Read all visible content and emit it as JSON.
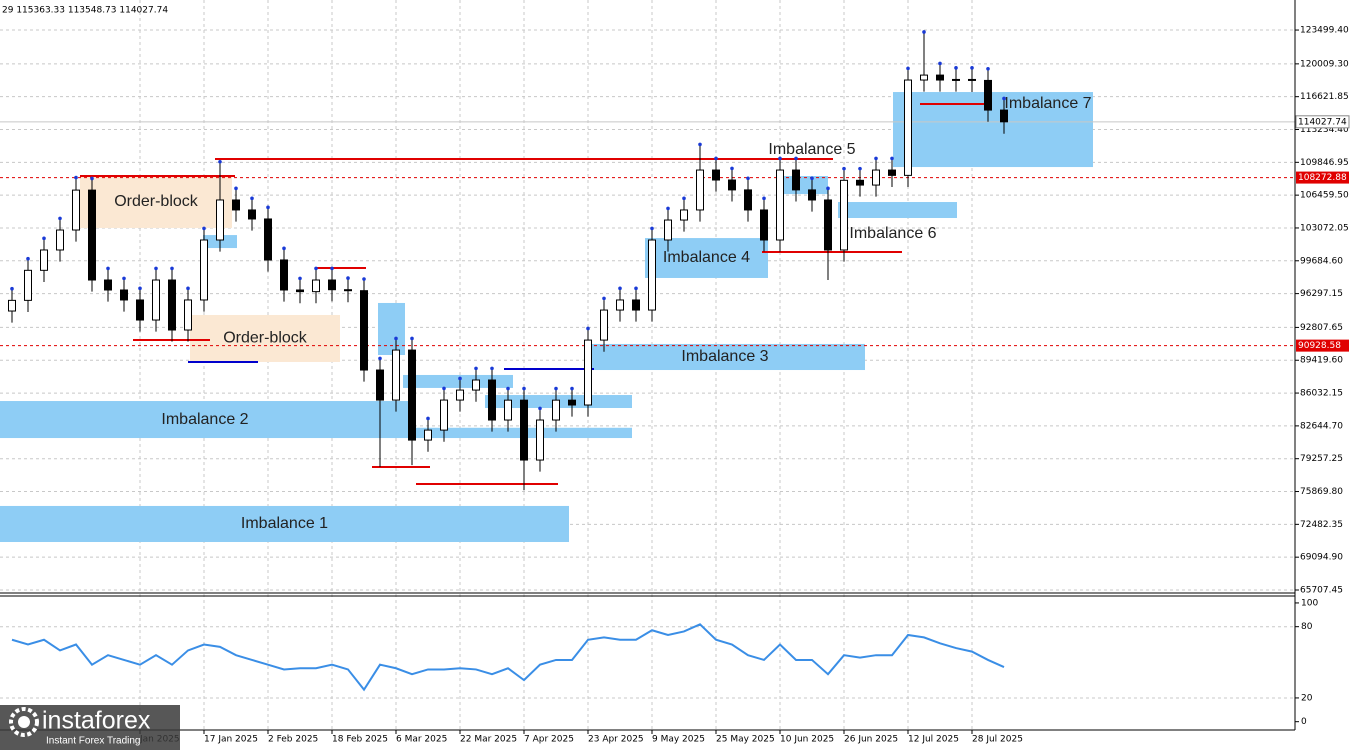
{
  "chart_data": [
    {
      "type": "candlestick",
      "header": "29 115363.33 113548.73 114027.74",
      "open": [
        94500,
        95600,
        98700,
        100800,
        102860,
        106980,
        97700,
        96670,
        95640,
        93570,
        97700,
        92540,
        95640,
        101830,
        105960,
        104930,
        104000,
        99770,
        96670,
        96500,
        97700,
        96700,
        96600,
        88410,
        85310,
        90470,
        81180,
        82210,
        85310,
        86340,
        87380,
        83250,
        85300,
        79120,
        83250,
        85300,
        84800,
        91500,
        94600,
        95640,
        94600,
        101830,
        103890,
        104930,
        109050,
        108020,
        107000,
        104930,
        101830,
        109050,
        107000,
        105960,
        100800,
        107990,
        107500,
        109050,
        108500,
        118340,
        118850,
        118340,
        118400,
        118300,
        115240
      ],
      "high": [
        96800,
        99900,
        102000,
        104060,
        108270,
        108180,
        98900,
        97870,
        96840,
        98900,
        98900,
        96840,
        103030,
        109900,
        107160,
        106130,
        105200,
        100970,
        97870,
        98900,
        98900,
        97900,
        97800,
        89610,
        91670,
        91670,
        83410,
        86510,
        87540,
        88580,
        88580,
        86500,
        86500,
        84450,
        86500,
        86500,
        92700,
        95800,
        96840,
        96840,
        103030,
        105090,
        106130,
        111700,
        110250,
        109220,
        108200,
        106130,
        110250,
        110250,
        108200,
        107160,
        109190,
        109190,
        110250,
        110250,
        119540,
        123300,
        120050,
        119600,
        119600,
        119500,
        116440
      ],
      "low": [
        93300,
        94400,
        97500,
        99600,
        101660,
        96500,
        95470,
        94440,
        92370,
        92370,
        91340,
        91340,
        94440,
        100630,
        103730,
        102800,
        98570,
        95470,
        95300,
        95300,
        95500,
        95400,
        87210,
        78400,
        84110,
        78600,
        79980,
        81010,
        84110,
        85140,
        82050,
        82050,
        76000,
        77920,
        82050,
        83600,
        83600,
        90300,
        93400,
        93400,
        93400,
        100630,
        102690,
        103730,
        106820,
        105800,
        103730,
        100630,
        100630,
        105800,
        104760,
        97700,
        99600,
        106300,
        106300,
        107300,
        107300,
        117140,
        117140,
        117140,
        117100,
        114040,
        112800
      ],
      "close": [
        95600,
        98700,
        100800,
        102860,
        106980,
        97700,
        96670,
        95640,
        93570,
        97700,
        92540,
        95640,
        101830,
        105960,
        104930,
        104000,
        99770,
        96670,
        96500,
        97700,
        96700,
        96600,
        88410,
        85310,
        90470,
        81180,
        82210,
        85310,
        86340,
        87380,
        83250,
        85300,
        79120,
        83250,
        85300,
        84800,
        91500,
        94600,
        95640,
        94600,
        101830,
        103890,
        104930,
        109050,
        108020,
        107000,
        104930,
        101830,
        109050,
        107000,
        105960,
        100800,
        107990,
        107500,
        109050,
        108500,
        118340,
        118850,
        118340,
        118400,
        118300,
        115240,
        114027.74
      ],
      "x_labels": [
        "Jan 2025",
        "17 Jan 2025",
        "2 Feb 2025",
        "18 Feb 2025",
        "6 Mar 2025",
        "22 Mar 2025",
        "7 Apr 2025",
        "23 Apr 2025",
        "9 May 2025",
        "25 May 2025",
        "10 Jun 2025",
        "26 Jun 2025",
        "12 Jul 2025",
        "28 Jul 2025"
      ],
      "ylim": [
        65500,
        126600
      ],
      "yticks": [
        {
          "value": 123499.4,
          "label": "123499.40"
        },
        {
          "value": 120009.3,
          "label": "120009.30"
        },
        {
          "value": 116621.85,
          "label": "116621.85"
        },
        {
          "value": 113234.4,
          "label": "113234.40"
        },
        {
          "value": 109846.95,
          "label": "109846.95"
        },
        {
          "value": 106459.5,
          "label": "106459.50"
        },
        {
          "value": 103072.05,
          "label": "103072.05"
        },
        {
          "value": 99684.6,
          "label": "99684.60"
        },
        {
          "value": 96297.15,
          "label": "96297.15"
        },
        {
          "value": 92807.65,
          "label": "92807.65"
        },
        {
          "value": 89419.6,
          "label": "89419.60"
        },
        {
          "value": 86032.15,
          "label": "86032.15"
        },
        {
          "value": 82644.7,
          "label": "82644.70"
        },
        {
          "value": 79257.25,
          "label": "79257.25"
        },
        {
          "value": 75869.8,
          "label": "75869.80"
        },
        {
          "value": 72482.35,
          "label": "72482.35"
        },
        {
          "value": 69094.9,
          "label": "69094.90"
        },
        {
          "value": 65707.45,
          "label": "65707.45"
        }
      ],
      "grid": true,
      "price_labels": [
        {
          "value": 114027.74,
          "color": "#c8c8c8",
          "dashed": false
        },
        {
          "value": 108272.88,
          "color": "#e00000",
          "dashed": true
        },
        {
          "value": 90928.58,
          "color": "#e00000",
          "dashed": true
        }
      ],
      "zones": [
        {
          "label": "Imbalance 1",
          "high": 74380,
          "low": 70660,
          "color": "#8ecdf5"
        },
        {
          "label": "Imbalance 2",
          "high": 85210,
          "low": 81390,
          "color": "#8ecdf5"
        },
        {
          "label": "Imbalance 3",
          "high": 91100,
          "low": 88410,
          "color": "#8ecdf5"
        },
        {
          "label": "Imbalance 4",
          "high": 102030,
          "low": 97910,
          "color": "#8ecdf5"
        },
        {
          "label": "Imbalance 5",
          "high": 108430,
          "low": 106570,
          "color": "#8ecdf5"
        },
        {
          "label": "Imbalance 6",
          "high": 105750,
          "low": 104100,
          "color": "#8ecdf5"
        },
        {
          "label": "Imbalance 7",
          "high": 117100,
          "low": 109360,
          "color": "#8ecdf5"
        },
        {
          "label": "Order-block",
          "high": 108430,
          "low": 103070,
          "color": "#fbe8d3"
        },
        {
          "label": "Order-block",
          "high": 94090,
          "low": 89240,
          "color": "#fbe8d3"
        },
        {
          "high": 82450,
          "low": 81390,
          "color": "#8ecdf5"
        },
        {
          "high": 87900,
          "low": 86560,
          "color": "#8ecdf5"
        },
        {
          "high": 85830,
          "low": 84490,
          "color": "#8ecdf5"
        },
        {
          "high": 102340,
          "low": 101000,
          "color": "#8ecdf5"
        },
        {
          "high": 95330,
          "low": 89960,
          "color": "#8ecdf5"
        }
      ],
      "levels": [
        {
          "value": 110190,
          "color": "#e00000"
        },
        {
          "value": 108430,
          "color": "#e00000"
        },
        {
          "value": 98940,
          "color": "#e00000"
        },
        {
          "value": 91510,
          "color": "#e00000"
        },
        {
          "value": 78400,
          "color": "#e00000"
        },
        {
          "value": 76650,
          "color": "#e00000"
        },
        {
          "value": 115870,
          "color": "#e00000"
        },
        {
          "value": 100590,
          "color": "#e00000"
        },
        {
          "value": 89240,
          "color": "#0000cc"
        },
        {
          "value": 88520,
          "color": "#0000cc"
        }
      ]
    },
    {
      "type": "line",
      "values": [
        69,
        65,
        69,
        60,
        65,
        48,
        56,
        52,
        48,
        56,
        48,
        60,
        65,
        63,
        56,
        52,
        48,
        44,
        45,
        45,
        48,
        44,
        27,
        48,
        45,
        40,
        44,
        44,
        45,
        44,
        40,
        45,
        35,
        48,
        52,
        52,
        69,
        71,
        69,
        69,
        77,
        73,
        76,
        82,
        69,
        65,
        56,
        52,
        65,
        52,
        52,
        40,
        56,
        54,
        56,
        56,
        73,
        71,
        66,
        62,
        59,
        52,
        46
      ],
      "color": "#3a8ee6",
      "ylim": [
        -7,
        105
      ],
      "yticks": [
        100,
        80,
        20,
        0
      ],
      "grid": true
    }
  ],
  "branding": {
    "name": "instaforex",
    "tagline": "Instant Forex Trading"
  }
}
